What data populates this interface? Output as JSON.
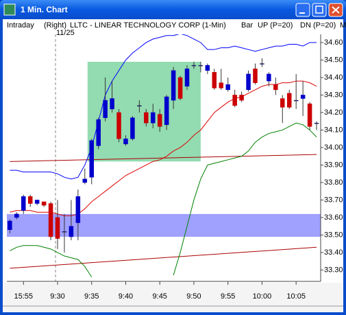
{
  "window": {
    "title": "1 Min. Chart"
  },
  "chart_data": {
    "type": "candlestick",
    "header": [
      "Intraday",
      "(Right)",
      "LLTC - LINEAR TECHNOLOGY CORP (1-Min)",
      "Bar"
    ],
    "annotation": "11/25",
    "xlim": [
      -0.44,
      45.6
    ],
    "xticks": [
      {
        "value": 2,
        "label": "15:55"
      },
      {
        "value": 7,
        "label": "9:30"
      },
      {
        "value": 12,
        "label": "9:35"
      },
      {
        "value": 17,
        "label": "9:40"
      },
      {
        "value": 22,
        "label": "9:45"
      },
      {
        "value": 27,
        "label": "9:50"
      },
      {
        "value": 32,
        "label": "9:55"
      },
      {
        "value": 37,
        "label": "10:00"
      },
      {
        "value": 42,
        "label": "10:05"
      }
    ],
    "ylim": [
      33.235,
      34.647
    ],
    "yticks": [
      {
        "value": 34.6,
        "label": "34.60"
      },
      {
        "value": 34.5,
        "label": "34.50"
      },
      {
        "value": 34.4,
        "label": "34.40"
      },
      {
        "value": 34.3,
        "label": "34.30"
      },
      {
        "value": 34.2,
        "label": "34.20"
      },
      {
        "value": 34.1,
        "label": "34.10"
      },
      {
        "value": 34.0,
        "label": "34.00"
      },
      {
        "value": 33.9,
        "label": "33.90"
      },
      {
        "value": 33.8,
        "label": "33.80"
      },
      {
        "value": 33.7,
        "label": "33.70"
      },
      {
        "value": 33.6,
        "label": "33.60"
      },
      {
        "value": 33.5,
        "label": "33.50"
      },
      {
        "value": 33.4,
        "label": "33.40"
      },
      {
        "value": 33.3,
        "label": "33.30"
      }
    ],
    "up_color": "#0000cc",
    "down_color": "#cc0000",
    "open": [
      33.53,
      33.6,
      33.64,
      33.72,
      33.68,
      33.69,
      33.68,
      33.6,
      33.52,
      33.49,
      33.57,
      33.8,
      33.83,
      34.01,
      34.17,
      34.22,
      34.2,
      34.02,
      34.05,
      34.24,
      34.2,
      34.14,
      34.19,
      34.13,
      34.27,
      34.4,
      34.35,
      34.47,
      34.47,
      34.44,
      34.43,
      34.37,
      34.33,
      34.3,
      34.3,
      34.33,
      34.45,
      34.48,
      34.38,
      34.36,
      34.28,
      34.31,
      34.27,
      34.28,
      34.25,
      34.14
    ],
    "high": [
      33.59,
      33.63,
      33.73,
      33.73,
      33.7,
      33.69,
      33.69,
      33.7,
      33.62,
      33.7,
      33.76,
      33.88,
      34.05,
      34.17,
      34.4,
      34.38,
      34.22,
      34.07,
      34.18,
      34.27,
      34.22,
      34.25,
      34.22,
      34.3,
      34.46,
      34.41,
      34.47,
      34.49,
      34.49,
      34.48,
      34.45,
      34.45,
      34.4,
      34.33,
      34.32,
      34.44,
      34.48,
      34.51,
      34.43,
      34.4,
      34.3,
      34.33,
      34.42,
      34.38,
      34.26,
      34.15
    ],
    "low": [
      33.51,
      33.59,
      33.62,
      33.66,
      33.67,
      33.66,
      33.47,
      33.42,
      33.4,
      33.47,
      33.47,
      33.79,
      33.79,
      33.99,
      34.15,
      34.2,
      34.03,
      34.01,
      34.04,
      34.2,
      34.12,
      34.11,
      34.09,
      34.1,
      34.22,
      34.27,
      34.33,
      34.45,
      34.43,
      34.42,
      34.33,
      34.33,
      34.32,
      34.23,
      34.26,
      34.32,
      34.36,
      34.46,
      34.35,
      34.3,
      34.14,
      34.22,
      34.22,
      34.18,
      34.1,
      34.1
    ],
    "close": [
      33.58,
      33.62,
      33.72,
      33.68,
      33.7,
      33.67,
      33.49,
      33.48,
      33.52,
      33.55,
      33.72,
      33.82,
      34.04,
      34.16,
      34.27,
      34.28,
      34.05,
      34.05,
      34.17,
      34.24,
      34.14,
      34.2,
      34.12,
      34.29,
      34.44,
      34.28,
      34.45,
      34.47,
      34.47,
      34.47,
      34.34,
      34.34,
      34.36,
      34.24,
      34.27,
      34.42,
      34.37,
      34.48,
      34.42,
      34.33,
      34.23,
      34.23,
      34.27,
      34.3,
      34.12,
      34.14
    ],
    "series": [
      {
        "name": "UP (P=20)",
        "color": "#0000ff",
        "values": [
          33.87,
          33.87,
          33.86,
          33.86,
          33.86,
          33.86,
          33.86,
          33.85,
          33.83,
          33.82,
          33.83,
          33.9,
          34.0,
          34.15,
          34.3,
          34.38,
          34.44,
          34.5,
          34.54,
          34.57,
          34.6,
          34.62,
          34.63,
          34.64,
          34.64,
          34.65,
          34.64,
          34.62,
          34.6,
          34.56,
          34.56,
          34.57,
          34.57,
          34.58,
          34.57,
          34.56,
          34.55,
          34.56,
          34.57,
          34.58,
          34.58,
          34.59,
          34.59,
          34.58,
          34.6,
          34.6
        ]
      },
      {
        "name": "DN (P=20)",
        "color": "#008000",
        "values": [
          33.41,
          33.43,
          33.44,
          33.44,
          33.44,
          33.43,
          33.42,
          33.4,
          33.38,
          33.37,
          33.36,
          33.32,
          33.26,
          null,
          null,
          null,
          null,
          null,
          null,
          null,
          null,
          null,
          null,
          null,
          33.27,
          33.4,
          33.55,
          33.7,
          33.82,
          33.9,
          33.91,
          33.92,
          33.93,
          33.94,
          33.95,
          33.98,
          34.03,
          34.06,
          34.08,
          34.09,
          34.1,
          34.12,
          34.14,
          34.13,
          34.1,
          34.06
        ]
      },
      {
        "name": "M",
        "color": "#dd0000",
        "values": [
          33.63,
          33.64,
          33.64,
          33.64,
          33.63,
          33.63,
          33.63,
          33.62,
          33.61,
          33.61,
          33.62,
          33.65,
          33.69,
          33.72,
          33.75,
          33.78,
          33.81,
          33.84,
          33.86,
          33.88,
          33.9,
          33.92,
          33.93,
          33.95,
          33.98,
          34.0,
          34.03,
          34.07,
          34.1,
          34.15,
          34.2,
          34.23,
          34.26,
          34.28,
          34.29,
          34.31,
          34.33,
          34.35,
          34.36,
          34.36,
          34.37,
          34.37,
          34.38,
          34.38,
          34.37,
          34.35
        ]
      }
    ],
    "trend_lines": [
      {
        "color": "#aa0000",
        "x": [
          0,
          45
        ],
        "values": [
          33.92,
          33.96
        ]
      },
      {
        "color": "#aa0000",
        "x": [
          0,
          45
        ],
        "values": [
          33.31,
          33.43
        ]
      }
    ],
    "zones": [
      {
        "color": "#6fcf97",
        "x": [
          11.4,
          28.0
        ],
        "y": [
          33.92,
          34.49
        ]
      },
      {
        "color": "#8080ff",
        "y": [
          33.49,
          33.62
        ]
      }
    ]
  }
}
